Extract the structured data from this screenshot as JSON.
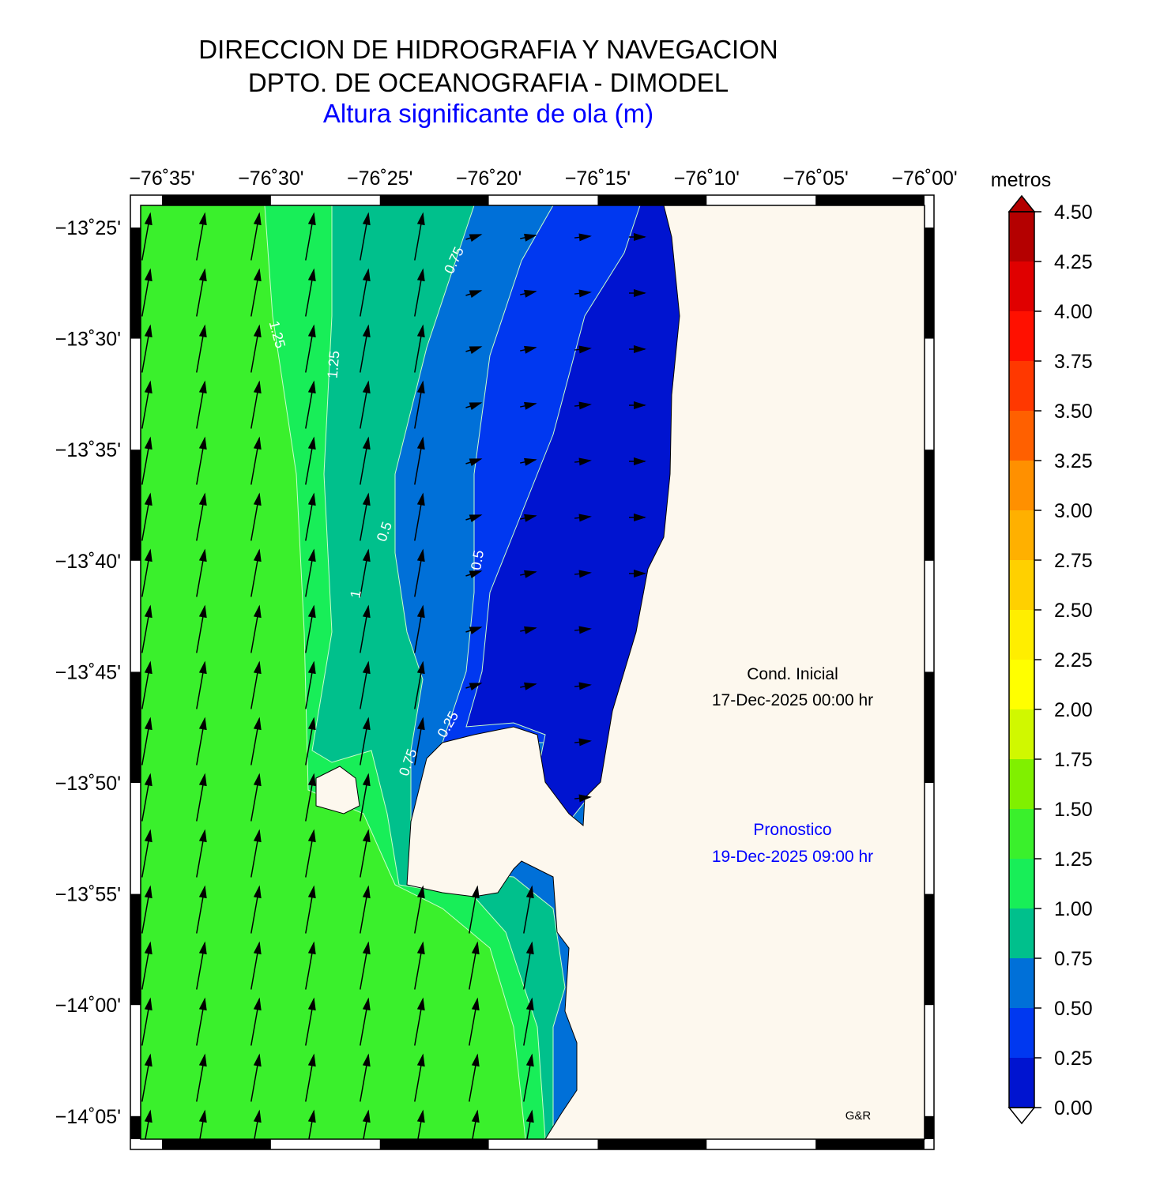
{
  "header": {
    "lines": [
      "DIRECCION DE HIDROGRAFIA Y NAVEGACION",
      "DPTO. DE OCEANOGRAFIA - DIMODEL",
      "Altura significante de ola (m)"
    ]
  },
  "map": {
    "x_ticks": [
      "−76˚35'",
      "−76˚30'",
      "−76˚25'",
      "−76˚20'",
      "−76˚15'",
      "−76˚10'",
      "−76˚05'",
      "−76˚00'"
    ],
    "y_ticks": [
      "−13˚25'",
      "−13˚30'",
      "−13˚35'",
      "−13˚40'",
      "−13˚45'",
      "−13˚50'",
      "−13˚55'",
      "−14˚00'",
      "−14˚05'"
    ],
    "contour_labels": [
      "1.25",
      "1.25",
      "0.75",
      "0.5",
      "0.5",
      "1",
      "0.25",
      "0.75"
    ],
    "annotations": {
      "initial_label": "Cond. Inicial",
      "initial_time": "17-Dec-2025 00:00 hr",
      "forecast_label": "Pronostico",
      "forecast_time": "19-Dec-2025 09:00 hr",
      "credit": "G&R"
    }
  },
  "colorbar": {
    "unit": "metros",
    "labels": [
      "0.00",
      "0.25",
      "0.50",
      "0.75",
      "1.00",
      "1.25",
      "1.50",
      "1.75",
      "2.00",
      "2.25",
      "2.50",
      "2.75",
      "3.00",
      "3.25",
      "3.50",
      "3.75",
      "4.00",
      "4.25",
      "4.50"
    ],
    "colors": [
      "#0014d0",
      "#0038f0",
      "#0070d8",
      "#00c08c",
      "#18ee58",
      "#3af02c",
      "#80f000",
      "#d0f800",
      "#ffff00",
      "#ffee00",
      "#ffd000",
      "#ffb000",
      "#ff9000",
      "#ff6000",
      "#ff3800",
      "#ff1000",
      "#e00000",
      "#b40000"
    ]
  }
}
